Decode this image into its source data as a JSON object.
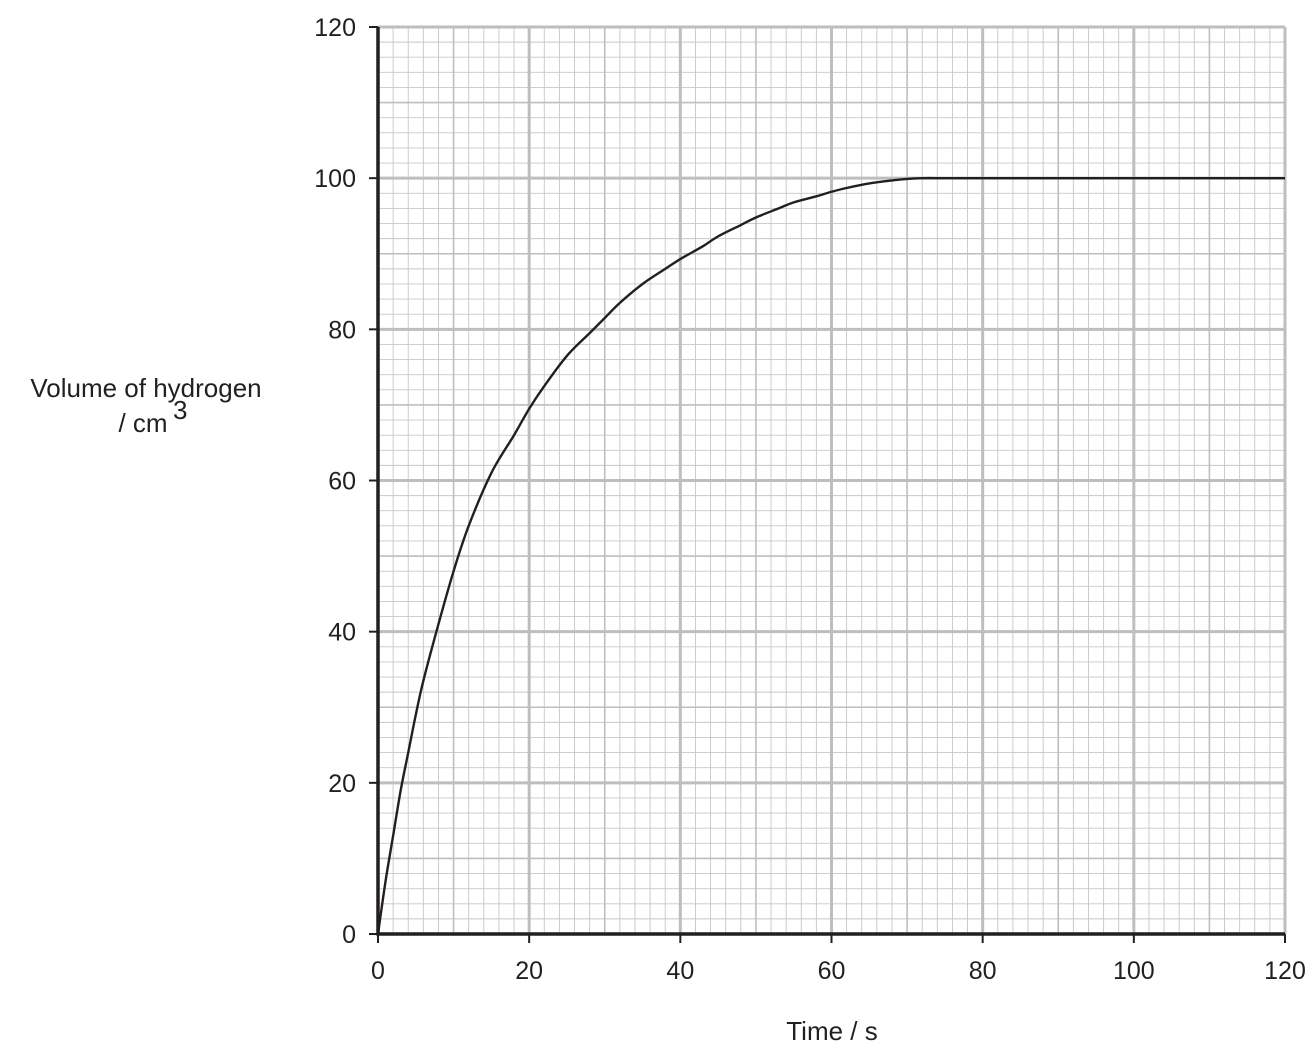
{
  "chart_data": {
    "type": "line",
    "title": "",
    "xlabel": "Time / s",
    "ylabel_line1": "Volume of hydrogen",
    "ylabel_line2": "/ cm",
    "ylabel_superscript": "3",
    "xlim": [
      0,
      120
    ],
    "ylim": [
      0,
      120
    ],
    "x_ticks": [
      0,
      20,
      40,
      60,
      80,
      100,
      120
    ],
    "y_ticks": [
      0,
      20,
      40,
      60,
      80,
      100,
      120
    ],
    "grid": true,
    "grid_minor_step": 2,
    "grid_mid_step": 10,
    "grid_major_step": 20,
    "colors": {
      "grid_minor": "#c6c7c9",
      "grid_major": "#bcbec0",
      "axis": "#231f20",
      "curve": "#231f20"
    },
    "series": [
      {
        "x": [
          0,
          1,
          2,
          3,
          4,
          5,
          6,
          8,
          10,
          12,
          15,
          18,
          20,
          22,
          25,
          28,
          30,
          32,
          35,
          38,
          40,
          43,
          45,
          48,
          50,
          53,
          55,
          58,
          60,
          62,
          65,
          68,
          70,
          72,
          75,
          78,
          80,
          90,
          100,
          110,
          120
        ],
        "y": [
          0,
          7,
          13,
          19,
          24,
          29,
          33.5,
          41,
          48,
          54,
          61,
          66,
          69.5,
          72.5,
          76.5,
          79.5,
          81.5,
          83.5,
          86,
          88,
          89.3,
          91,
          92.3,
          93.8,
          94.8,
          96,
          96.8,
          97.6,
          98.2,
          98.7,
          99.3,
          99.7,
          99.9,
          100,
          100,
          100,
          100,
          100,
          100,
          100,
          100
        ]
      }
    ]
  }
}
